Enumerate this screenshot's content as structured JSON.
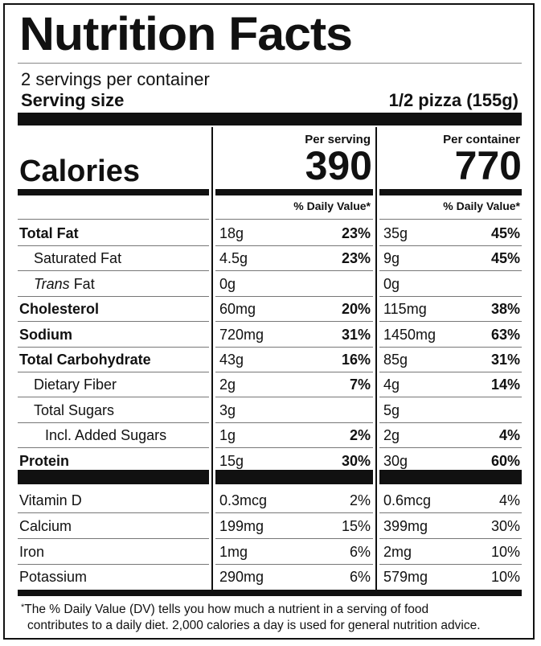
{
  "title": "Nutrition Facts",
  "servings_per_container": "2 servings per container",
  "serving_size_label": "Serving size",
  "serving_size_value": "1/2 pizza (155g)",
  "calories_label": "Calories",
  "per_serving_label": "Per serving",
  "per_container_label": "Per container",
  "calories_per_serving": "390",
  "calories_per_container": "770",
  "daily_value_header": "% Daily Value*",
  "nutrients": [
    {
      "name": "Total Fat",
      "bold": true,
      "indent": 0,
      "serving_amount": "18g",
      "serving_dv": "23%",
      "container_amount": "35g",
      "container_dv": "45%"
    },
    {
      "name": "Saturated Fat",
      "bold": false,
      "indent": 1,
      "serving_amount": "4.5g",
      "serving_dv": "23%",
      "container_amount": "9g",
      "container_dv": "45%"
    },
    {
      "name_italic": "Trans",
      "name": " Fat",
      "bold": false,
      "indent": 1,
      "serving_amount": "0g",
      "serving_dv": "",
      "container_amount": "0g",
      "container_dv": ""
    },
    {
      "name": "Cholesterol",
      "bold": true,
      "indent": 0,
      "serving_amount": "60mg",
      "serving_dv": "20%",
      "container_amount": "115mg",
      "container_dv": "38%"
    },
    {
      "name": "Sodium",
      "bold": true,
      "indent": 0,
      "serving_amount": "720mg",
      "serving_dv": "31%",
      "container_amount": "1450mg",
      "container_dv": "63%"
    },
    {
      "name": "Total Carbohydrate",
      "bold": true,
      "indent": 0,
      "serving_amount": "43g",
      "serving_dv": "16%",
      "container_amount": "85g",
      "container_dv": "31%"
    },
    {
      "name": "Dietary Fiber",
      "bold": false,
      "indent": 1,
      "serving_amount": "2g",
      "serving_dv": "7%",
      "container_amount": "4g",
      "container_dv": "14%"
    },
    {
      "name": "Total Sugars",
      "bold": false,
      "indent": 1,
      "serving_amount": "3g",
      "serving_dv": "",
      "container_amount": "5g",
      "container_dv": ""
    },
    {
      "name": "Incl. Added Sugars",
      "bold": false,
      "indent": 2,
      "serving_amount": "1g",
      "serving_dv": "2%",
      "container_amount": "2g",
      "container_dv": "4%"
    },
    {
      "name": "Protein",
      "bold": true,
      "indent": 0,
      "serving_amount": "15g",
      "serving_dv": "30%",
      "container_amount": "30g",
      "container_dv": "60%"
    }
  ],
  "vitamins": [
    {
      "name": "Vitamin D",
      "serving_amount": "0.3mcg",
      "serving_dv": "2%",
      "container_amount": "0.6mcg",
      "container_dv": "4%"
    },
    {
      "name": "Calcium",
      "serving_amount": "199mg",
      "serving_dv": "15%",
      "container_amount": "399mg",
      "container_dv": "30%"
    },
    {
      "name": "Iron",
      "serving_amount": "1mg",
      "serving_dv": "6%",
      "container_amount": "2mg",
      "container_dv": "10%"
    },
    {
      "name": "Potassium",
      "serving_amount": "290mg",
      "serving_dv": "6%",
      "container_amount": "579mg",
      "container_dv": "10%"
    }
  ],
  "footnote_marker": "*",
  "footnote_line1": "The % Daily Value (DV) tells you how much a nutrient in a serving of food",
  "footnote_line2": "contributes to a daily diet. 2,000 calories a day is used for general nutrition advice."
}
